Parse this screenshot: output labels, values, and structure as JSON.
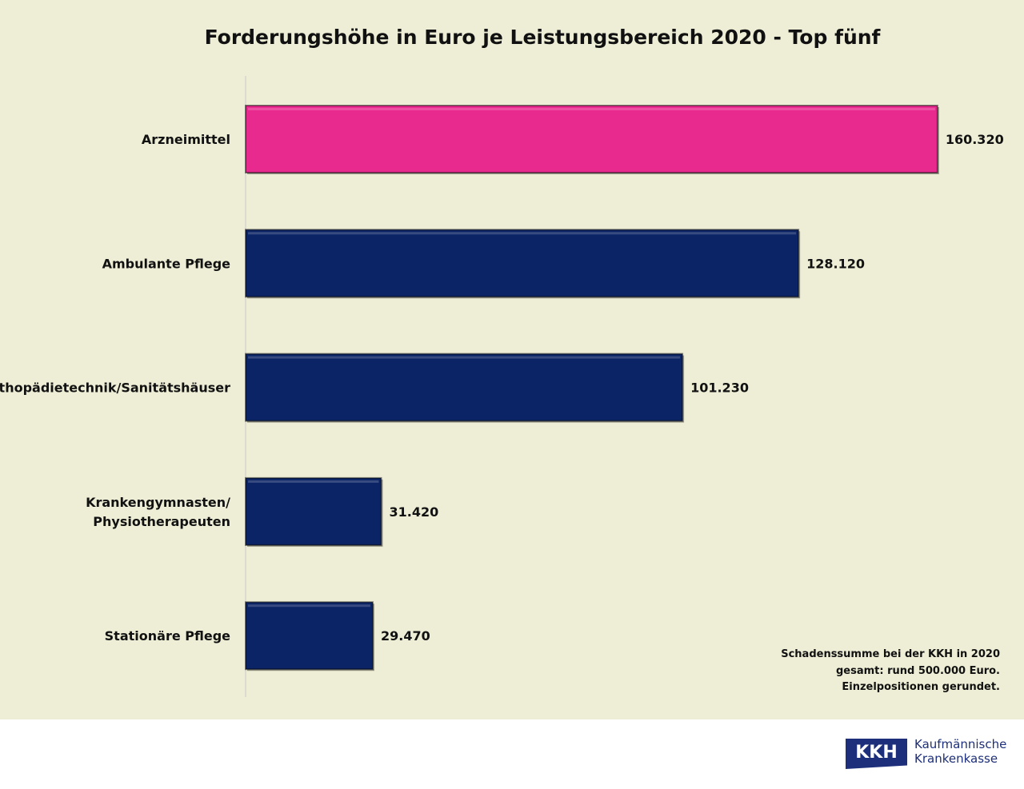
{
  "chart_data": {
    "type": "bar",
    "orientation": "horizontal",
    "title": "Forderungshöhe in Euro je Leistungsbereich 2020 - Top fünf",
    "categories": [
      "Arzneimittel",
      "Ambulante Pflege",
      "Orthopädietechnik/Sanitätshäuser",
      "Krankengymnasten/\nPhysiotherapeuten",
      "Stationäre Pflege"
    ],
    "values": [
      160320,
      128120,
      101230,
      31420,
      29470
    ],
    "value_labels": [
      "160.320",
      "128.120",
      "101.230",
      "31.420",
      "29.470"
    ],
    "colors": [
      "#e82a8f",
      "#0b2465",
      "#0b2465",
      "#0b2465",
      "#0b2465"
    ],
    "xlim": [
      0,
      180000
    ],
    "grid": false,
    "xlabel": "",
    "ylabel": ""
  },
  "note": [
    "Schadenssumme bei der KKH in 2020",
    "gesamt: rund 500.000 Euro.",
    "Einzelpositionen gerundet."
  ],
  "logo": {
    "mark": "KKH",
    "line1": "Kaufmännische",
    "line2": "Krankenkasse"
  }
}
